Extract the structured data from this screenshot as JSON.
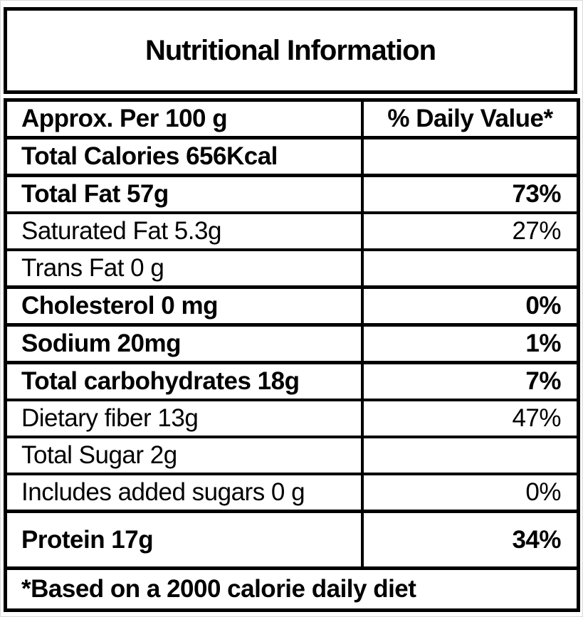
{
  "title": "Nutritional Information",
  "table": {
    "header": {
      "col1": "Approx. Per 100 g",
      "col2": "% Daily Value*"
    },
    "rows": [
      {
        "label": "Total Calories 656Kcal",
        "value": "",
        "bold": true,
        "tall": false
      },
      {
        "label": "Total Fat 57g",
        "value": "73%",
        "bold": true,
        "tall": false
      },
      {
        "label": "Saturated Fat 5.3g",
        "value": "27%",
        "bold": false,
        "tall": false
      },
      {
        "label": "Trans Fat 0 g",
        "value": "",
        "bold": false,
        "tall": false
      },
      {
        "label": "Cholesterol 0 mg",
        "value": "0%",
        "bold": true,
        "tall": false
      },
      {
        "label": "Sodium 20mg",
        "value": "1%",
        "bold": true,
        "tall": false
      },
      {
        "label": "Total carbohydrates 18g",
        "value": "7%",
        "bold": true,
        "tall": false
      },
      {
        "label": "Dietary fiber 13g",
        "value": "47%",
        "bold": false,
        "tall": false
      },
      {
        "label": "Total Sugar 2g",
        "value": "",
        "bold": false,
        "tall": false
      },
      {
        "label": "Includes added sugars 0 g",
        "value": "0%",
        "bold": false,
        "tall": false
      },
      {
        "label": "Protein 17g",
        "value": "34%",
        "bold": true,
        "tall": true
      }
    ],
    "footer": "*Based on a 2000 calorie daily diet"
  },
  "colors": {
    "border": "#000000",
    "text": "#000000",
    "background": "#ffffff"
  }
}
